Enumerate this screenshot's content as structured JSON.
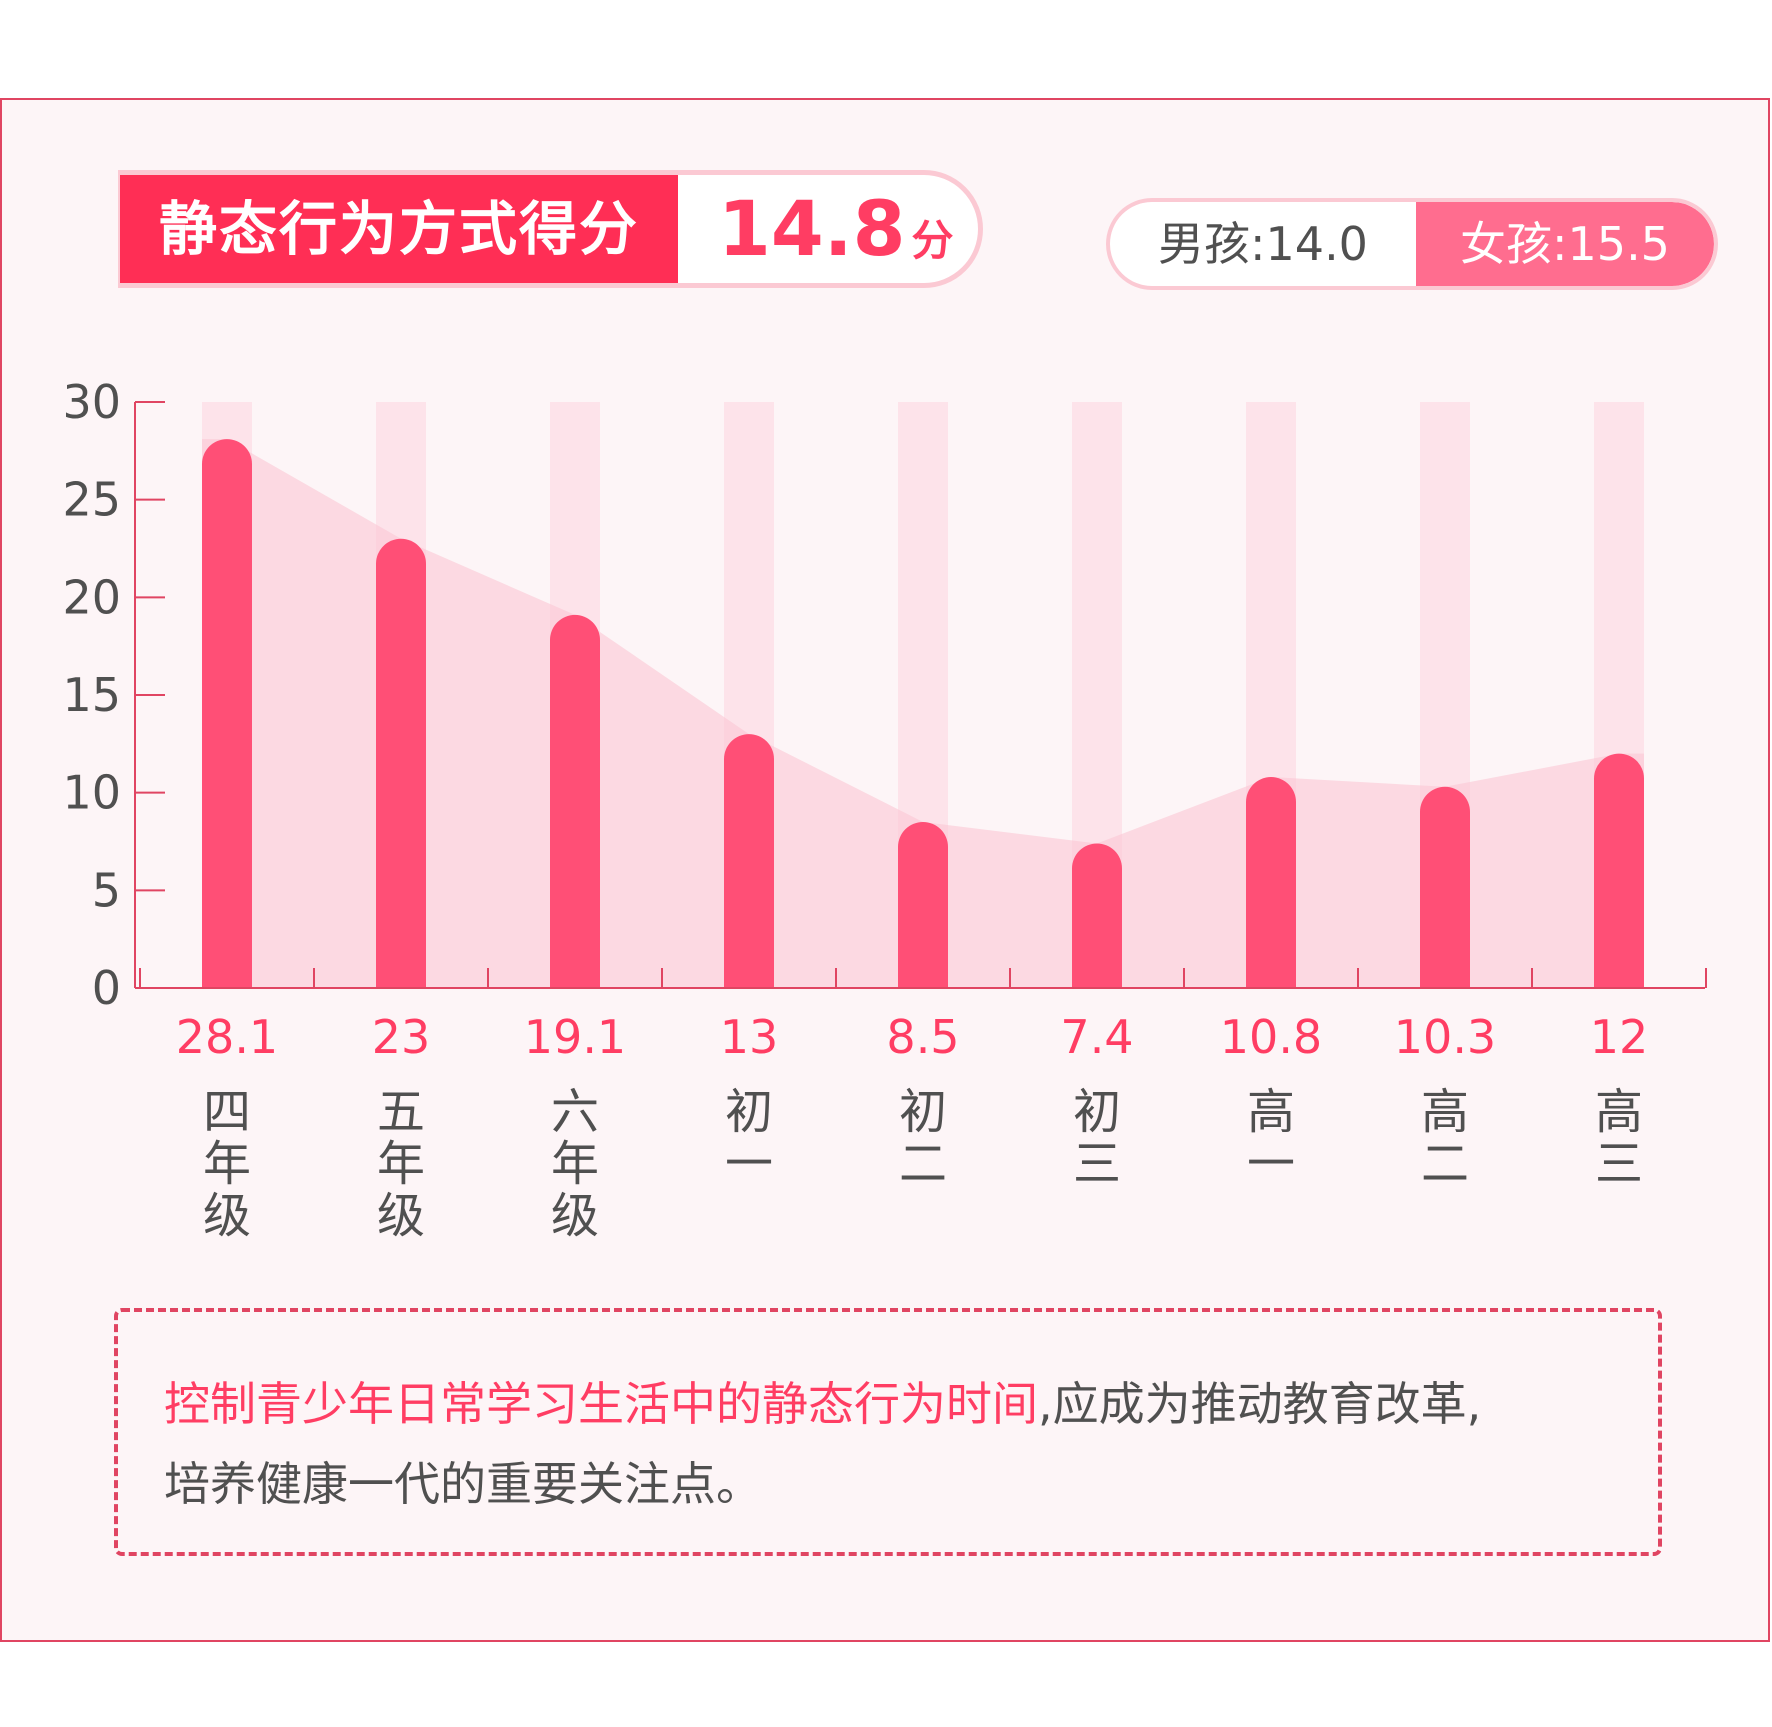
{
  "header": {
    "score_label": "静态行为方式得分",
    "score_value": "14.8",
    "score_unit": "分",
    "boy": "男孩:14.0",
    "girl": "女孩:15.5"
  },
  "colors": {
    "bar": "#ff4f76",
    "bar_bg": "#fde3ea",
    "area": "#fbc6d3",
    "axis": "#e04562",
    "accent": "#ff3d63"
  },
  "chart_data": {
    "type": "bar",
    "categories": [
      "四年级",
      "五年级",
      "六年级",
      "初一",
      "初二",
      "初三",
      "高一",
      "高二",
      "高三"
    ],
    "values": [
      28.1,
      23,
      19.1,
      13,
      8.5,
      7.4,
      10.8,
      10.3,
      12
    ],
    "value_labels": [
      "28.1",
      "23",
      "19.1",
      "13",
      "8.5",
      "7.4",
      "10.8",
      "10.3",
      "12"
    ],
    "yticks": [
      "0",
      "5",
      "10",
      "15",
      "20",
      "25",
      "30"
    ],
    "ylim": [
      0,
      30
    ],
    "title": "",
    "xlabel": "",
    "ylabel": "",
    "grid": false,
    "overlay": "area-line"
  },
  "note": {
    "highlight": "控制青少年日常学习生活中的静态行为时间",
    "rest": ",应成为推动教育改革,",
    "line2": "培养健康一代的重要关注点。"
  }
}
